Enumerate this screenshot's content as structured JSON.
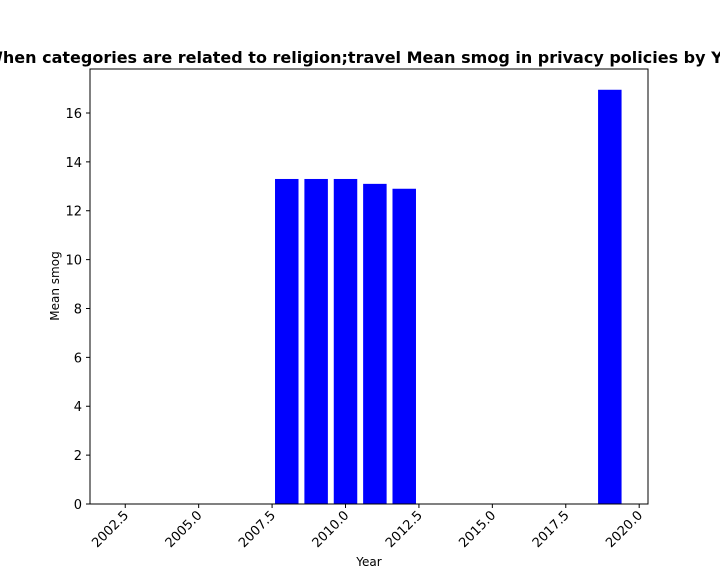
{
  "chart_data": {
    "type": "bar",
    "title": "When categories are related to religion;travel Mean smog in privacy policies by Year",
    "xlabel": "Year",
    "ylabel": "Mean smog",
    "x": [
      2008,
      2009,
      2010,
      2011,
      2012,
      2019
    ],
    "values": [
      13.3,
      13.3,
      13.3,
      13.1,
      12.9,
      16.95
    ],
    "xlim": [
      2001.3,
      2020.3
    ],
    "ylim": [
      0,
      17.8
    ],
    "xticks": [
      "2002.5",
      "2005.0",
      "2007.5",
      "2010.0",
      "2012.5",
      "2015.0",
      "2017.5",
      "2020.0"
    ],
    "yticks": [
      "0",
      "2",
      "4",
      "6",
      "8",
      "10",
      "12",
      "14",
      "16"
    ],
    "bar_color": "#0000ff",
    "grid": false,
    "legend": "none"
  }
}
